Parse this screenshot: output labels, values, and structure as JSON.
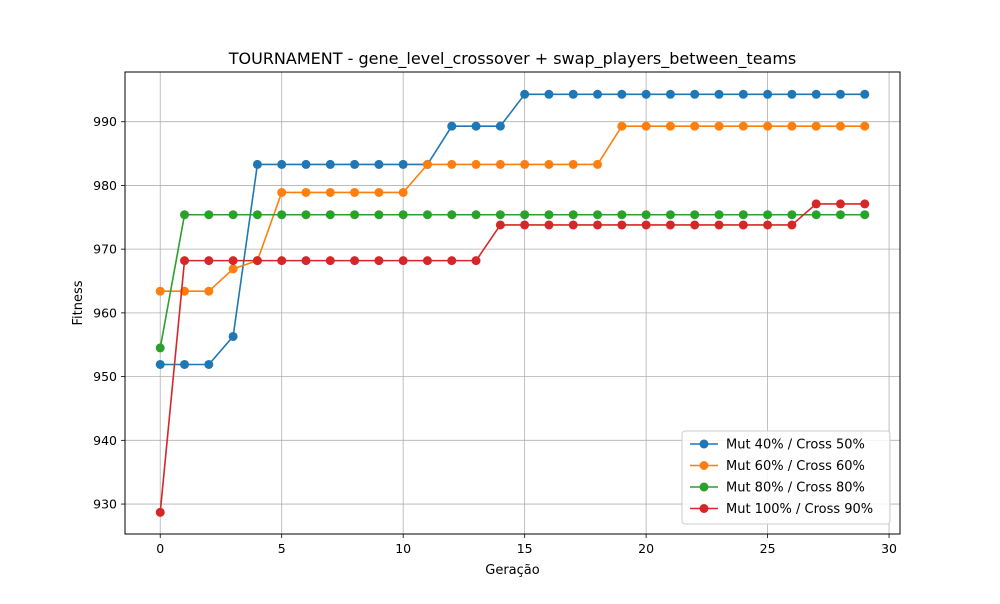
{
  "chart_data": {
    "type": "line",
    "title": "TOURNAMENT - gene_level_crossover + swap_players_between_teams",
    "xlabel": "Geração",
    "ylabel": "Fitness",
    "xlim": [
      -1.45,
      30.45
    ],
    "ylim": [
      925.3,
      997.8
    ],
    "xticks": [
      0,
      5,
      10,
      15,
      20,
      25,
      30
    ],
    "yticks": [
      930,
      940,
      950,
      960,
      970,
      980,
      990
    ],
    "grid": true,
    "legend_position": "lower-right",
    "x": [
      0,
      1,
      2,
      3,
      4,
      5,
      6,
      7,
      8,
      9,
      10,
      11,
      12,
      13,
      14,
      15,
      16,
      17,
      18,
      19,
      20,
      21,
      22,
      23,
      24,
      25,
      26,
      27,
      28,
      29
    ],
    "series": [
      {
        "name": "Mut 40% / Cross 50%",
        "color": "#1f77b4",
        "values": [
          951.9,
          951.9,
          951.9,
          956.3,
          983.3,
          983.3,
          983.3,
          983.3,
          983.3,
          983.3,
          983.3,
          983.3,
          989.3,
          989.3,
          989.3,
          994.3,
          994.3,
          994.3,
          994.3,
          994.3,
          994.3,
          994.3,
          994.3,
          994.3,
          994.3,
          994.3,
          994.3,
          994.3,
          994.3,
          994.3
        ]
      },
      {
        "name": "Mut 60% / Cross 60%",
        "color": "#ff7f0e",
        "values": [
          963.4,
          963.4,
          963.4,
          966.9,
          968.2,
          978.9,
          978.9,
          978.9,
          978.9,
          978.9,
          978.9,
          983.3,
          983.3,
          983.3,
          983.3,
          983.3,
          983.3,
          983.3,
          983.3,
          989.3,
          989.3,
          989.3,
          989.3,
          989.3,
          989.3,
          989.3,
          989.3,
          989.3,
          989.3,
          989.3
        ]
      },
      {
        "name": "Mut 80% / Cross 80%",
        "color": "#2ca02c",
        "values": [
          954.5,
          975.4,
          975.4,
          975.4,
          975.4,
          975.4,
          975.4,
          975.4,
          975.4,
          975.4,
          975.4,
          975.4,
          975.4,
          975.4,
          975.4,
          975.4,
          975.4,
          975.4,
          975.4,
          975.4,
          975.4,
          975.4,
          975.4,
          975.4,
          975.4,
          975.4,
          975.4,
          975.4,
          975.4,
          975.4
        ]
      },
      {
        "name": "Mut 100% / Cross 90%",
        "color": "#d62728",
        "values": [
          928.7,
          968.2,
          968.2,
          968.2,
          968.2,
          968.2,
          968.2,
          968.2,
          968.2,
          968.2,
          968.2,
          968.2,
          968.2,
          968.2,
          973.8,
          973.8,
          973.8,
          973.8,
          973.8,
          973.8,
          973.8,
          973.8,
          973.8,
          973.8,
          973.8,
          973.8,
          973.8,
          977.1,
          977.1,
          977.1
        ]
      }
    ]
  }
}
